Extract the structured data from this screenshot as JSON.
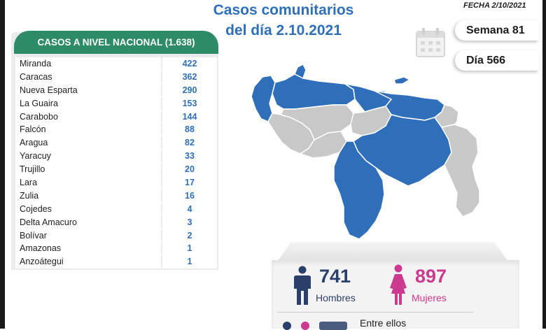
{
  "header": {
    "title_line1": "Casos comunitarios",
    "title_line2": "del día 2.10.2021",
    "fecha": "FECHA 2/10/2021"
  },
  "badges": {
    "semana": "Semana 81",
    "dia": "Día 566",
    "icon": "calendar-icon"
  },
  "national": {
    "header": "CASOS A NIVEL NACIONAL (1.638)",
    "rows": [
      {
        "name": "Miranda",
        "value": "422"
      },
      {
        "name": "Caracas",
        "value": "362"
      },
      {
        "name": "Nueva Esparta",
        "value": "290"
      },
      {
        "name": "La Guaira",
        "value": "153"
      },
      {
        "name": "Carabobo",
        "value": "144"
      },
      {
        "name": "Falcón",
        "value": "88"
      },
      {
        "name": "Aragua",
        "value": "82"
      },
      {
        "name": "Yaracuy",
        "value": "33"
      },
      {
        "name": "Trujillo",
        "value": "20"
      },
      {
        "name": "Lara",
        "value": "17"
      },
      {
        "name": "Zulia",
        "value": "16"
      },
      {
        "name": "Cojedes",
        "value": "4"
      },
      {
        "name": "Delta Amacuro",
        "value": "3"
      },
      {
        "name": "Bolívar",
        "value": "2"
      },
      {
        "name": "Amazonas",
        "value": "1"
      },
      {
        "name": "Anzoátegui",
        "value": "1"
      }
    ]
  },
  "gender": {
    "hombres_count": "741",
    "hombres_label": "Hombres",
    "mujeres_count": "897",
    "mujeres_label": "Mujeres",
    "entre_ellos": "Entre ellos"
  },
  "colors": {
    "accent_blue": "#2e6fb7",
    "header_green": "#2e8b68",
    "map_highlight": "#2f6fba",
    "map_other": "#c8c8c8",
    "male": "#2b3f6b",
    "female": "#cc3a8f"
  }
}
